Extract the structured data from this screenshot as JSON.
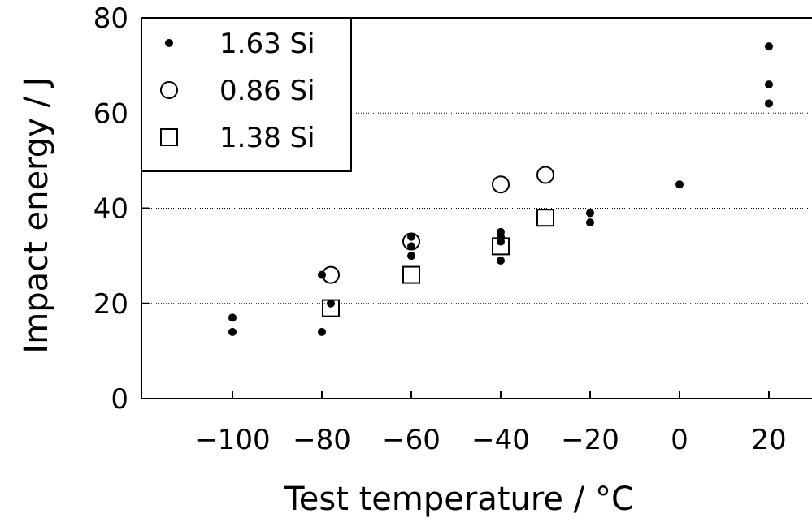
{
  "chart_data": {
    "type": "scatter",
    "title": "",
    "xlabel": "Test temperature / °C",
    "ylabel": "Impact energy / J",
    "xlim": [
      -115,
      23
    ],
    "ylim": [
      0,
      80
    ],
    "x_ticks": [
      -100,
      -80,
      -60,
      -40,
      -20,
      0,
      20
    ],
    "x_tick_labels": [
      "−100",
      "−80",
      "−60",
      "−40",
      "−20",
      "0",
      "20"
    ],
    "y_ticks": [
      0,
      20,
      40,
      60,
      80
    ],
    "y_tick_labels": [
      "0",
      "20",
      "40",
      "60",
      "80"
    ],
    "grid": "horizontal dotted lines at 20, 40, 60",
    "legend_position": "top-left",
    "series": [
      {
        "name": "1.63 Si",
        "marker": "dot",
        "points": [
          [
            -100,
            17
          ],
          [
            -100,
            14
          ],
          [
            -80,
            26
          ],
          [
            -80,
            14
          ],
          [
            -78,
            20
          ],
          [
            -60,
            34
          ],
          [
            -60,
            32
          ],
          [
            -60,
            30
          ],
          [
            -40,
            35
          ],
          [
            -40,
            34
          ],
          [
            -40,
            33
          ],
          [
            -40,
            29
          ],
          [
            -20,
            39
          ],
          [
            -20,
            37
          ],
          [
            0,
            45
          ],
          [
            20,
            74
          ],
          [
            20,
            66
          ],
          [
            20,
            62
          ]
        ]
      },
      {
        "name": "0.86 Si",
        "marker": "open-circle",
        "points": [
          [
            -78,
            26
          ],
          [
            -60,
            33
          ],
          [
            -40,
            45
          ],
          [
            -30,
            47
          ]
        ]
      },
      {
        "name": "1.38 Si",
        "marker": "open-square",
        "points": [
          [
            -78,
            19
          ],
          [
            -60,
            26
          ],
          [
            -40,
            32
          ],
          [
            -30,
            38
          ]
        ]
      }
    ]
  },
  "colors": {
    "marker": "#000000",
    "grid": "#000000",
    "background": "#ffffff"
  }
}
